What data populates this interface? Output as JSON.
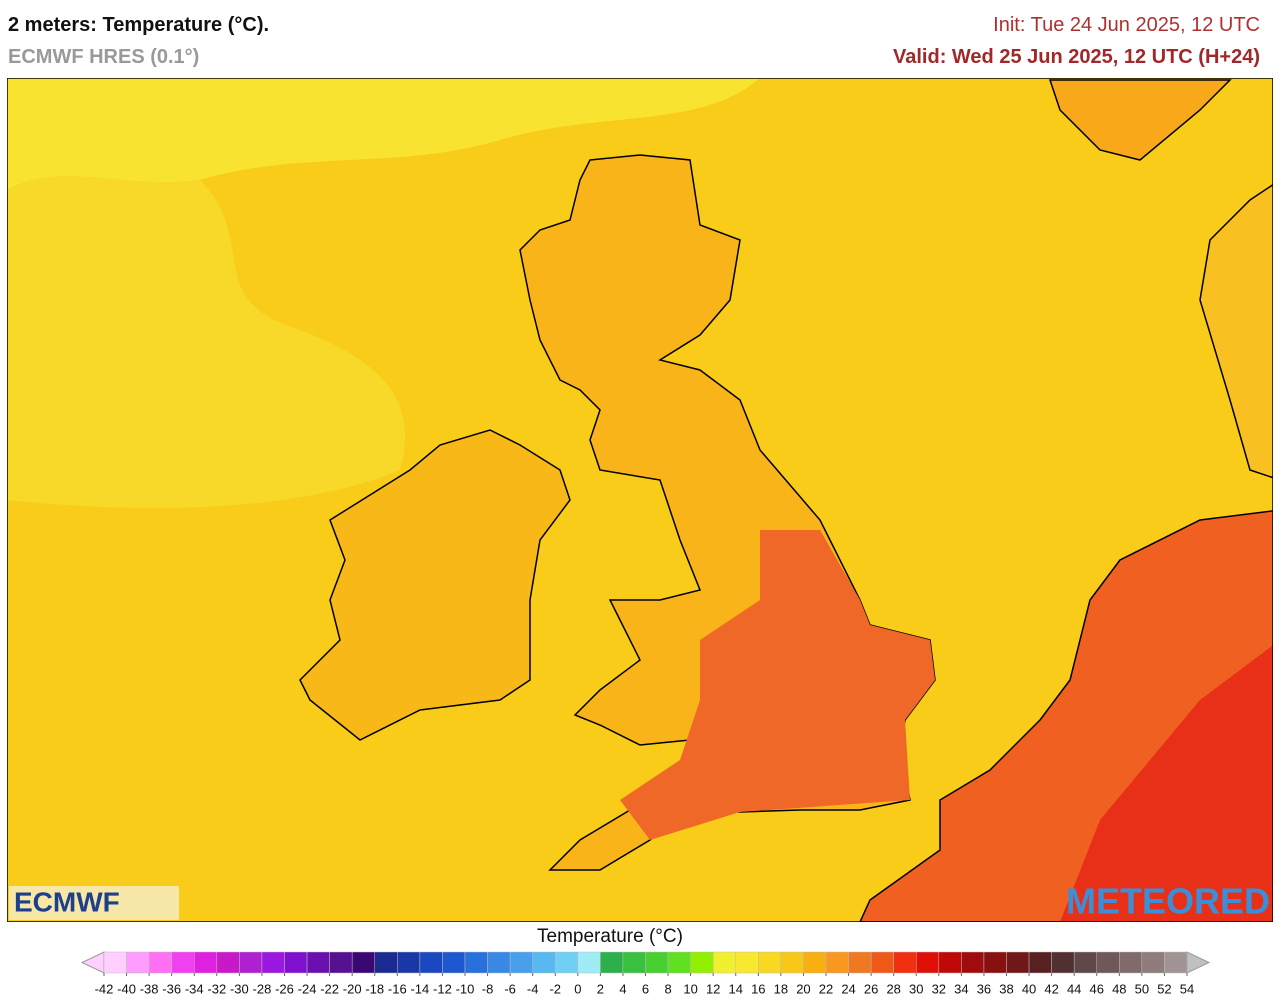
{
  "header": {
    "title": "2 meters: Temperature (°C).",
    "model": "ECMWF HRES (0.1°)",
    "init": "Init: Tue 24 Jun 2025, 12 UTC",
    "valid": "Valid: Wed 25 Jun 2025, 12 UTC (H+24)"
  },
  "map": {
    "logo_left": "ECMWF",
    "logo_right": "METEORED"
  },
  "colorbar": {
    "title": "Temperature (°C)",
    "ticks": [
      -42,
      -40,
      -38,
      -36,
      -34,
      -32,
      -30,
      -28,
      -26,
      -24,
      -22,
      -20,
      -18,
      -16,
      -14,
      -12,
      -10,
      -8,
      -6,
      -4,
      -2,
      0,
      2,
      4,
      6,
      8,
      10,
      12,
      14,
      16,
      18,
      20,
      22,
      24,
      26,
      28,
      30,
      32,
      34,
      36,
      38,
      40,
      42,
      44,
      46,
      48,
      50,
      52,
      54
    ],
    "colors": [
      "#ffd0ff",
      "#ff9cff",
      "#ff70f4",
      "#f040f0",
      "#e020e0",
      "#c818c8",
      "#b020d0",
      "#9a18e0",
      "#8010d0",
      "#6a10b0",
      "#561090",
      "#3a0870",
      "#1a2a90",
      "#1838a8",
      "#1a48c0",
      "#1e58d0",
      "#2870dc",
      "#3888e4",
      "#48a0ec",
      "#58b8f0",
      "#70d0f4",
      "#a0ecf4",
      "#2cb04c",
      "#38c040",
      "#48d030",
      "#60e020",
      "#90f000",
      "#f0f030",
      "#f8e830",
      "#f8d820",
      "#f8c818",
      "#f8b010",
      "#f89820",
      "#f07820",
      "#f05818",
      "#f03010",
      "#e01008",
      "#c00808",
      "#a00c0c",
      "#881010",
      "#701818",
      "#582020",
      "#503030",
      "#604848",
      "#705858",
      "#806a6a",
      "#907c7c",
      "#a09494"
    ],
    "under_color": "#ffd0ff",
    "over_color": "#c0c0c0"
  }
}
